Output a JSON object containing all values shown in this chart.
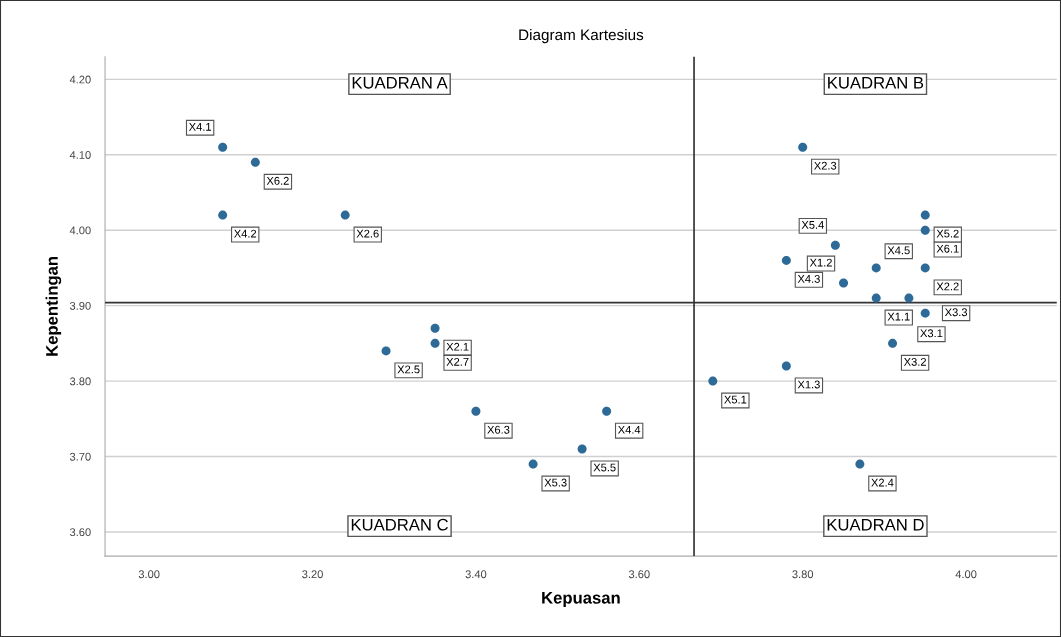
{
  "chart_data": {
    "type": "scatter",
    "title": "Diagram Kartesius",
    "xlabel": "Kepuasan",
    "ylabel": "Kepentingan",
    "xlim": [
      2.946,
      4.111
    ],
    "ylim": [
      3.568,
      4.23
    ],
    "xticks": [
      {
        "value": 3.0,
        "label": "3.00"
      },
      {
        "value": 3.2,
        "label": "3.20"
      },
      {
        "value": 3.4,
        "label": "3.40"
      },
      {
        "value": 3.6,
        "label": "3.60"
      },
      {
        "value": 3.8,
        "label": "3.80"
      },
      {
        "value": 4.0,
        "label": "4.00"
      }
    ],
    "yticks": [
      {
        "value": 3.6,
        "label": "3.60"
      },
      {
        "value": 3.7,
        "label": "3.70"
      },
      {
        "value": 3.8,
        "label": "3.80"
      },
      {
        "value": 3.9,
        "label": "3.90"
      },
      {
        "value": 4.0,
        "label": "4.00"
      },
      {
        "value": 4.1,
        "label": "4.10"
      },
      {
        "value": 4.2,
        "label": "4.20"
      }
    ],
    "grid": "y",
    "marker": "circle",
    "series": [
      {
        "color": "#2e6a97",
        "x": [
          3.09,
          3.13,
          3.09,
          3.24,
          3.35,
          3.35,
          3.29,
          3.4,
          3.56,
          3.53,
          3.47,
          3.8,
          3.95,
          3.95,
          3.84,
          3.89,
          3.78,
          3.85,
          3.95,
          3.89,
          3.93,
          3.95,
          3.91,
          3.78,
          3.69,
          3.87
        ],
        "values": [
          4.11,
          4.09,
          4.02,
          4.02,
          3.87,
          3.85,
          3.84,
          3.76,
          3.76,
          3.71,
          3.69,
          4.11,
          4.02,
          4.0,
          3.98,
          3.95,
          3.96,
          3.93,
          3.95,
          3.91,
          3.91,
          3.89,
          3.85,
          3.82,
          3.8,
          3.69
        ]
      }
    ],
    "ref_lines": [
      {
        "axis": "x",
        "value": 3.667,
        "color": "#333333"
      },
      {
        "axis": "y",
        "value": 3.904,
        "color": "#333333"
      }
    ],
    "annotations": [
      "KUADRAN A",
      "KUADRAN B",
      "KUADRAN C",
      "KUADRAN D",
      {
        "text": "X4.1",
        "x": 3.09,
        "y": 4.11
      },
      {
        "text": "X6.2",
        "x": 3.13,
        "y": 4.09
      },
      {
        "text": "X4.2",
        "x": 3.09,
        "y": 4.02
      },
      {
        "text": "X2.6",
        "x": 3.24,
        "y": 4.02
      },
      {
        "text": "X2.1",
        "x": 3.35,
        "y": 3.87
      },
      {
        "text": "X2.7",
        "x": 3.35,
        "y": 3.85
      },
      {
        "text": "X2.5",
        "x": 3.29,
        "y": 3.84
      },
      {
        "text": "X6.3",
        "x": 3.4,
        "y": 3.76
      },
      {
        "text": "X4.4",
        "x": 3.56,
        "y": 3.76
      },
      {
        "text": "X5.5",
        "x": 3.53,
        "y": 3.71
      },
      {
        "text": "X5.3",
        "x": 3.47,
        "y": 3.69
      },
      {
        "text": "X2.3",
        "x": 3.8,
        "y": 4.11
      },
      {
        "text": "X5.2",
        "x": 3.95,
        "y": 4.02
      },
      {
        "text": "X6.1",
        "x": 3.95,
        "y": 4.0
      },
      {
        "text": "X5.4",
        "x": 3.84,
        "y": 3.98
      },
      {
        "text": "X4.5",
        "x": 3.89,
        "y": 3.95
      },
      {
        "text": "X4.3",
        "x": 3.78,
        "y": 3.96
      },
      {
        "text": "X1.2",
        "x": 3.85,
        "y": 3.93
      },
      {
        "text": "X2.2",
        "x": 3.95,
        "y": 3.95
      },
      {
        "text": "X1.1",
        "x": 3.89,
        "y": 3.91
      },
      {
        "text": "X3.1",
        "x": 3.93,
        "y": 3.91
      },
      {
        "text": "X3.3",
        "x": 3.95,
        "y": 3.89
      },
      {
        "text": "X3.2",
        "x": 3.91,
        "y": 3.85
      },
      {
        "text": "X1.3",
        "x": 3.78,
        "y": 3.82
      },
      {
        "text": "X5.1",
        "x": 3.69,
        "y": 3.8
      },
      {
        "text": "X2.4",
        "x": 3.87,
        "y": 3.69
      }
    ]
  }
}
